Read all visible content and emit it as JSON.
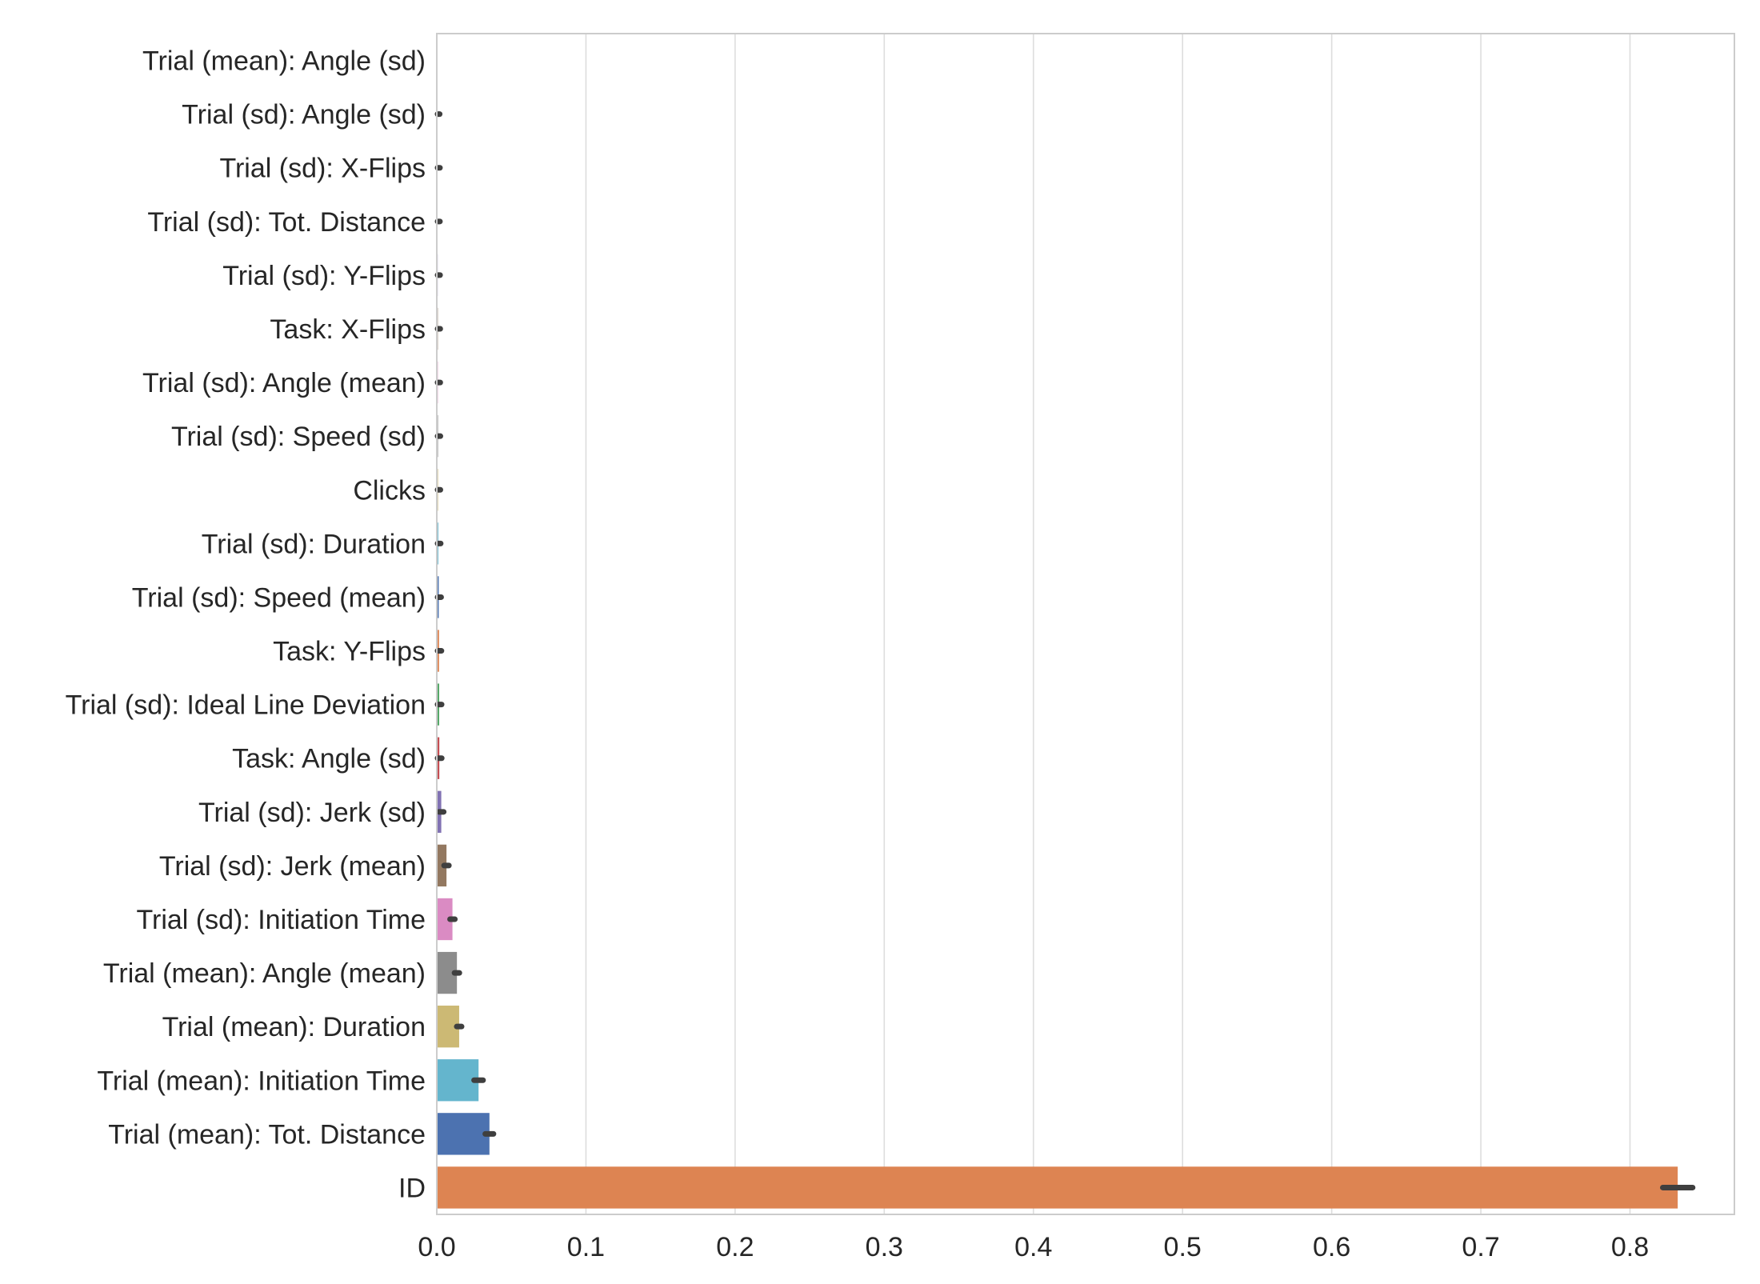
{
  "chart_data": {
    "type": "bar",
    "orientation": "horizontal",
    "title": "",
    "xlabel": "",
    "ylabel": "",
    "xlim": [
      0,
      0.87
    ],
    "xticks": [
      "0.0",
      "0.1",
      "0.2",
      "0.3",
      "0.4",
      "0.5",
      "0.6",
      "0.7",
      "0.8"
    ],
    "grid": "vertical",
    "error_bars": true,
    "categories": [
      "Trial (mean): Angle (sd)",
      "Trial (sd): Angle (sd)",
      "Trial (sd): X-Flips",
      "Trial (sd): Tot. Distance",
      "Trial (sd): Y-Flips",
      "Task: X-Flips",
      "Trial (sd): Angle (mean)",
      "Trial (sd): Speed (sd)",
      "Clicks",
      "Trial (sd): Duration",
      "Trial (sd): Speed (mean)",
      "Task: Y-Flips",
      "Trial (sd): Ideal Line Deviation",
      "Task: Angle (sd)",
      "Trial (sd): Jerk (sd)",
      "Trial (sd): Jerk (mean)",
      "Trial (sd): Initiation Time",
      "Trial (mean): Angle (mean)",
      "Trial (mean): Duration",
      "Trial (mean): Initiation Time",
      "Trial (mean): Tot. Distance",
      "ID"
    ],
    "values": [
      0.0,
      0.0003,
      0.0005,
      0.0005,
      0.0006,
      0.0007,
      0.0007,
      0.0008,
      0.0008,
      0.001,
      0.0013,
      0.0015,
      0.0016,
      0.0017,
      0.003,
      0.0065,
      0.0105,
      0.0135,
      0.015,
      0.028,
      0.0353,
      0.832
    ],
    "error_low": [
      0.0,
      0.0002,
      0.0004,
      0.0004,
      0.0005,
      0.0006,
      0.0006,
      0.0007,
      0.0007,
      0.0008,
      0.0011,
      0.0013,
      0.0014,
      0.0015,
      0.0026,
      0.0055,
      0.0092,
      0.012,
      0.0135,
      0.025,
      0.0325,
      0.822
    ],
    "error_high": [
      0.0,
      0.0004,
      0.0006,
      0.0006,
      0.0007,
      0.0008,
      0.0008,
      0.0009,
      0.0009,
      0.0012,
      0.0015,
      0.0017,
      0.0018,
      0.0019,
      0.0034,
      0.0075,
      0.0118,
      0.015,
      0.0165,
      0.031,
      0.038,
      0.842
    ],
    "colors": [
      "#4c72b0",
      "#dd8452",
      "#55a868",
      "#c44e52",
      "#8172b3",
      "#937860",
      "#da8bc3",
      "#8c8c8c",
      "#ccb974",
      "#64b5cd",
      "#4c72b0",
      "#dd8452",
      "#55a868",
      "#c44e52",
      "#8172b3",
      "#937860",
      "#da8bc3",
      "#8c8c8c",
      "#ccb974",
      "#64b5cd",
      "#4c72b0",
      "#dd8452"
    ],
    "errorbar_color": "#3f3f3f",
    "grid_color": "#dddddd",
    "axes_edge_color": "#cccccc"
  }
}
